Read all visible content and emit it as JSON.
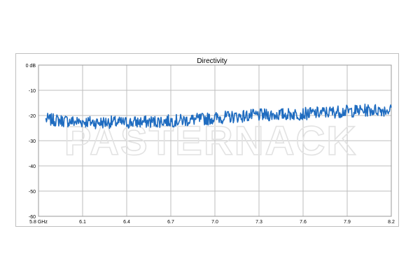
{
  "chart_data": {
    "type": "line",
    "title": "Directivity",
    "xlabel": "",
    "ylabel": "",
    "xlim": [
      5.8,
      8.2
    ],
    "ylim": [
      -60,
      0
    ],
    "grid": true,
    "watermark": "PASTERNACK",
    "x_ticks": [
      "5.8 GHz",
      "6.1",
      "6.4",
      "6.7",
      "7.0",
      "7.3",
      "7.6",
      "7.9",
      "8.2"
    ],
    "x_tick_values": [
      5.8,
      6.1,
      6.4,
      6.7,
      7.0,
      7.3,
      7.6,
      7.9,
      8.2
    ],
    "y_ticks": [
      "0 dB",
      "-10",
      "-20",
      "-30",
      "-40",
      "-50",
      "-60"
    ],
    "y_tick_values": [
      0,
      -10,
      -20,
      -30,
      -40,
      -50,
      -60
    ],
    "series": [
      {
        "color": "#1f6cc0",
        "x": [
          5.85,
          5.9,
          5.95,
          6.0,
          6.05,
          6.1,
          6.15,
          6.2,
          6.25,
          6.3,
          6.35,
          6.4,
          6.45,
          6.5,
          6.55,
          6.6,
          6.65,
          6.7,
          6.75,
          6.8,
          6.85,
          6.9,
          6.95,
          7.0,
          7.05,
          7.1,
          7.15,
          7.2,
          7.25,
          7.3,
          7.35,
          7.4,
          7.45,
          7.5,
          7.55,
          7.6,
          7.65,
          7.7,
          7.75,
          7.8,
          7.85,
          7.9,
          7.95,
          8.0,
          8.05,
          8.1,
          8.15,
          8.2
        ],
        "values": [
          -21.5,
          -21.8,
          -22.0,
          -22.2,
          -22.5,
          -22.4,
          -22.6,
          -22.8,
          -22.7,
          -22.6,
          -22.9,
          -22.8,
          -22.7,
          -22.6,
          -22.5,
          -22.4,
          -22.2,
          -22.1,
          -22.0,
          -21.9,
          -21.7,
          -21.5,
          -21.3,
          -21.0,
          -20.8,
          -20.6,
          -20.4,
          -20.2,
          -20.0,
          -19.9,
          -19.8,
          -19.7,
          -19.6,
          -19.5,
          -19.4,
          -19.3,
          -19.2,
          -19.0,
          -18.8,
          -18.6,
          -18.4,
          -18.3,
          -18.2,
          -18.0,
          -17.9,
          -17.8,
          -17.8,
          -17.7
        ]
      }
    ]
  }
}
